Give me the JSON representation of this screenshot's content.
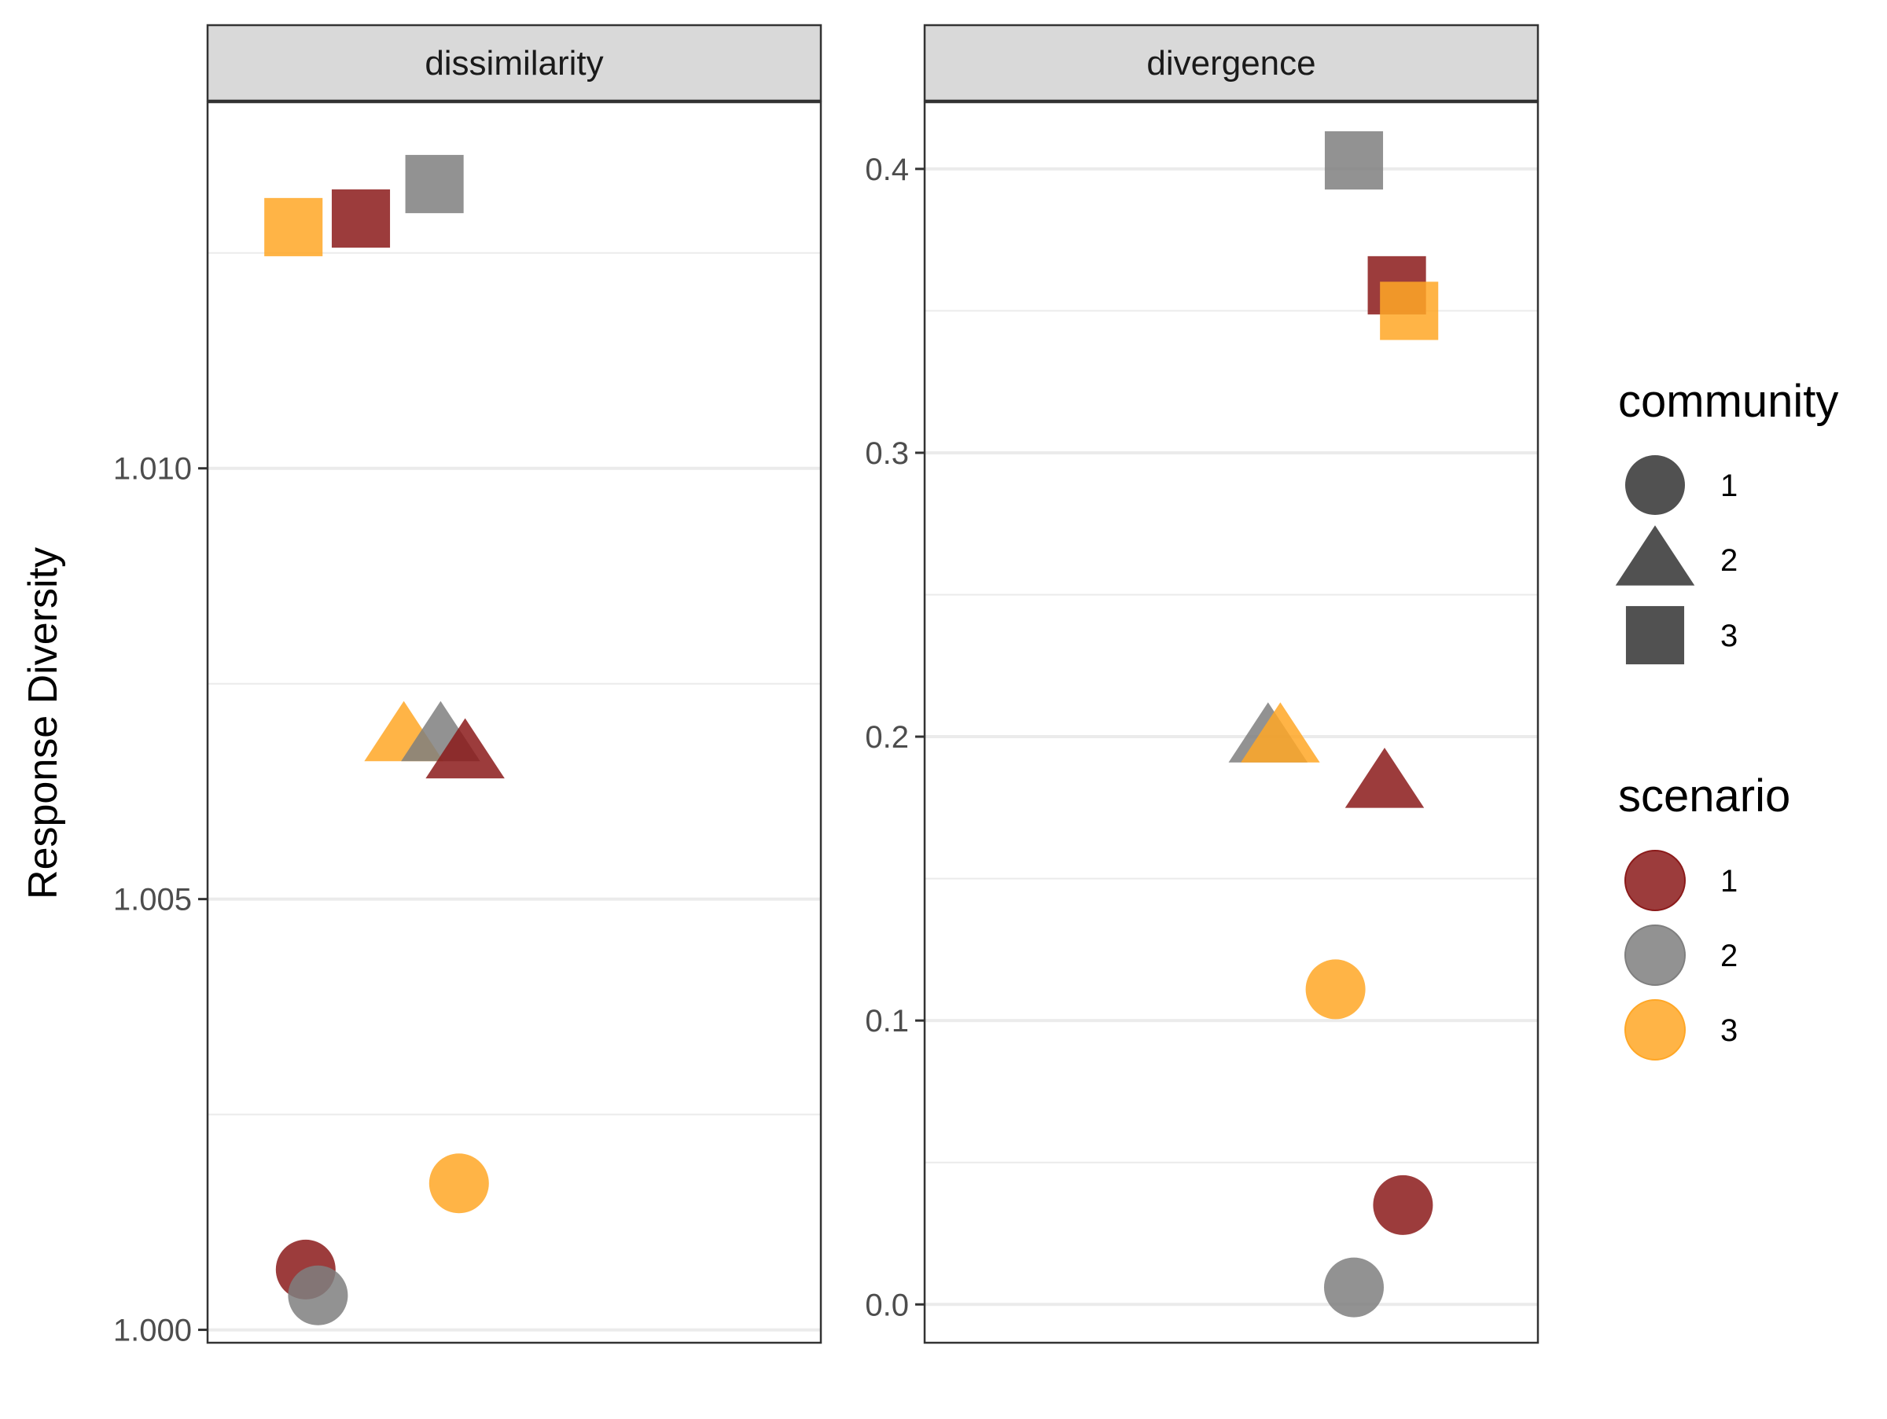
{
  "chart_data": {
    "type": "scatter",
    "ylabel": "Response Diversity",
    "colors": {
      "scenario_1": "#8b1a1a",
      "scenario_2": "#7f7f7f",
      "scenario_3": "#ffa726"
    },
    "legend": {
      "position": "right",
      "community": {
        "title": "community",
        "items": [
          {
            "label": "1",
            "shape": "circle"
          },
          {
            "label": "2",
            "shape": "triangle"
          },
          {
            "label": "3",
            "shape": "square"
          }
        ]
      },
      "scenario": {
        "title": "scenario",
        "items": [
          {
            "label": "1",
            "color": "#8b1a1a"
          },
          {
            "label": "2",
            "color": "#7f7f7f"
          },
          {
            "label": "3",
            "color": "#ffa726"
          }
        ]
      }
    },
    "panels": [
      {
        "title": "dissimilarity",
        "ylim": [
          0.99985,
          1.01425
        ],
        "yticks": [
          1.0,
          1.005,
          1.01
        ],
        "ytick_labels": [
          "1.000",
          "1.005",
          "1.010"
        ],
        "xlim": [
          0,
          1
        ],
        "points": [
          {
            "community": "3",
            "scenario": "2",
            "x": 0.37,
            "y": 1.0133
          },
          {
            "community": "3",
            "scenario": "1",
            "x": 0.25,
            "y": 1.0129
          },
          {
            "community": "3",
            "scenario": "3",
            "x": 0.14,
            "y": 1.0128
          },
          {
            "community": "2",
            "scenario": "3",
            "x": 0.32,
            "y": 1.0069
          },
          {
            "community": "2",
            "scenario": "2",
            "x": 0.38,
            "y": 1.0069
          },
          {
            "community": "2",
            "scenario": "1",
            "x": 0.42,
            "y": 1.0067
          },
          {
            "community": "1",
            "scenario": "3",
            "x": 0.41,
            "y": 1.0017
          },
          {
            "community": "1",
            "scenario": "1",
            "x": 0.16,
            "y": 1.0007
          },
          {
            "community": "1",
            "scenario": "2",
            "x": 0.18,
            "y": 1.0004
          }
        ]
      },
      {
        "title": "divergence",
        "ylim": [
          -0.0135,
          0.4235
        ],
        "yticks": [
          0.0,
          0.1,
          0.2,
          0.3,
          0.4
        ],
        "ytick_labels": [
          "0.0",
          "0.1",
          "0.2",
          "0.3",
          "0.4"
        ],
        "xlim": [
          0,
          1
        ],
        "points": [
          {
            "community": "3",
            "scenario": "2",
            "x": 0.7,
            "y": 0.403
          },
          {
            "community": "3",
            "scenario": "1",
            "x": 0.77,
            "y": 0.359
          },
          {
            "community": "3",
            "scenario": "3",
            "x": 0.79,
            "y": 0.35
          },
          {
            "community": "2",
            "scenario": "2",
            "x": 0.56,
            "y": 0.2
          },
          {
            "community": "2",
            "scenario": "3",
            "x": 0.58,
            "y": 0.2
          },
          {
            "community": "2",
            "scenario": "1",
            "x": 0.75,
            "y": 0.184
          },
          {
            "community": "1",
            "scenario": "3",
            "x": 0.67,
            "y": 0.111
          },
          {
            "community": "1",
            "scenario": "1",
            "x": 0.78,
            "y": 0.035
          },
          {
            "community": "1",
            "scenario": "2",
            "x": 0.7,
            "y": 0.006
          }
        ]
      }
    ]
  }
}
